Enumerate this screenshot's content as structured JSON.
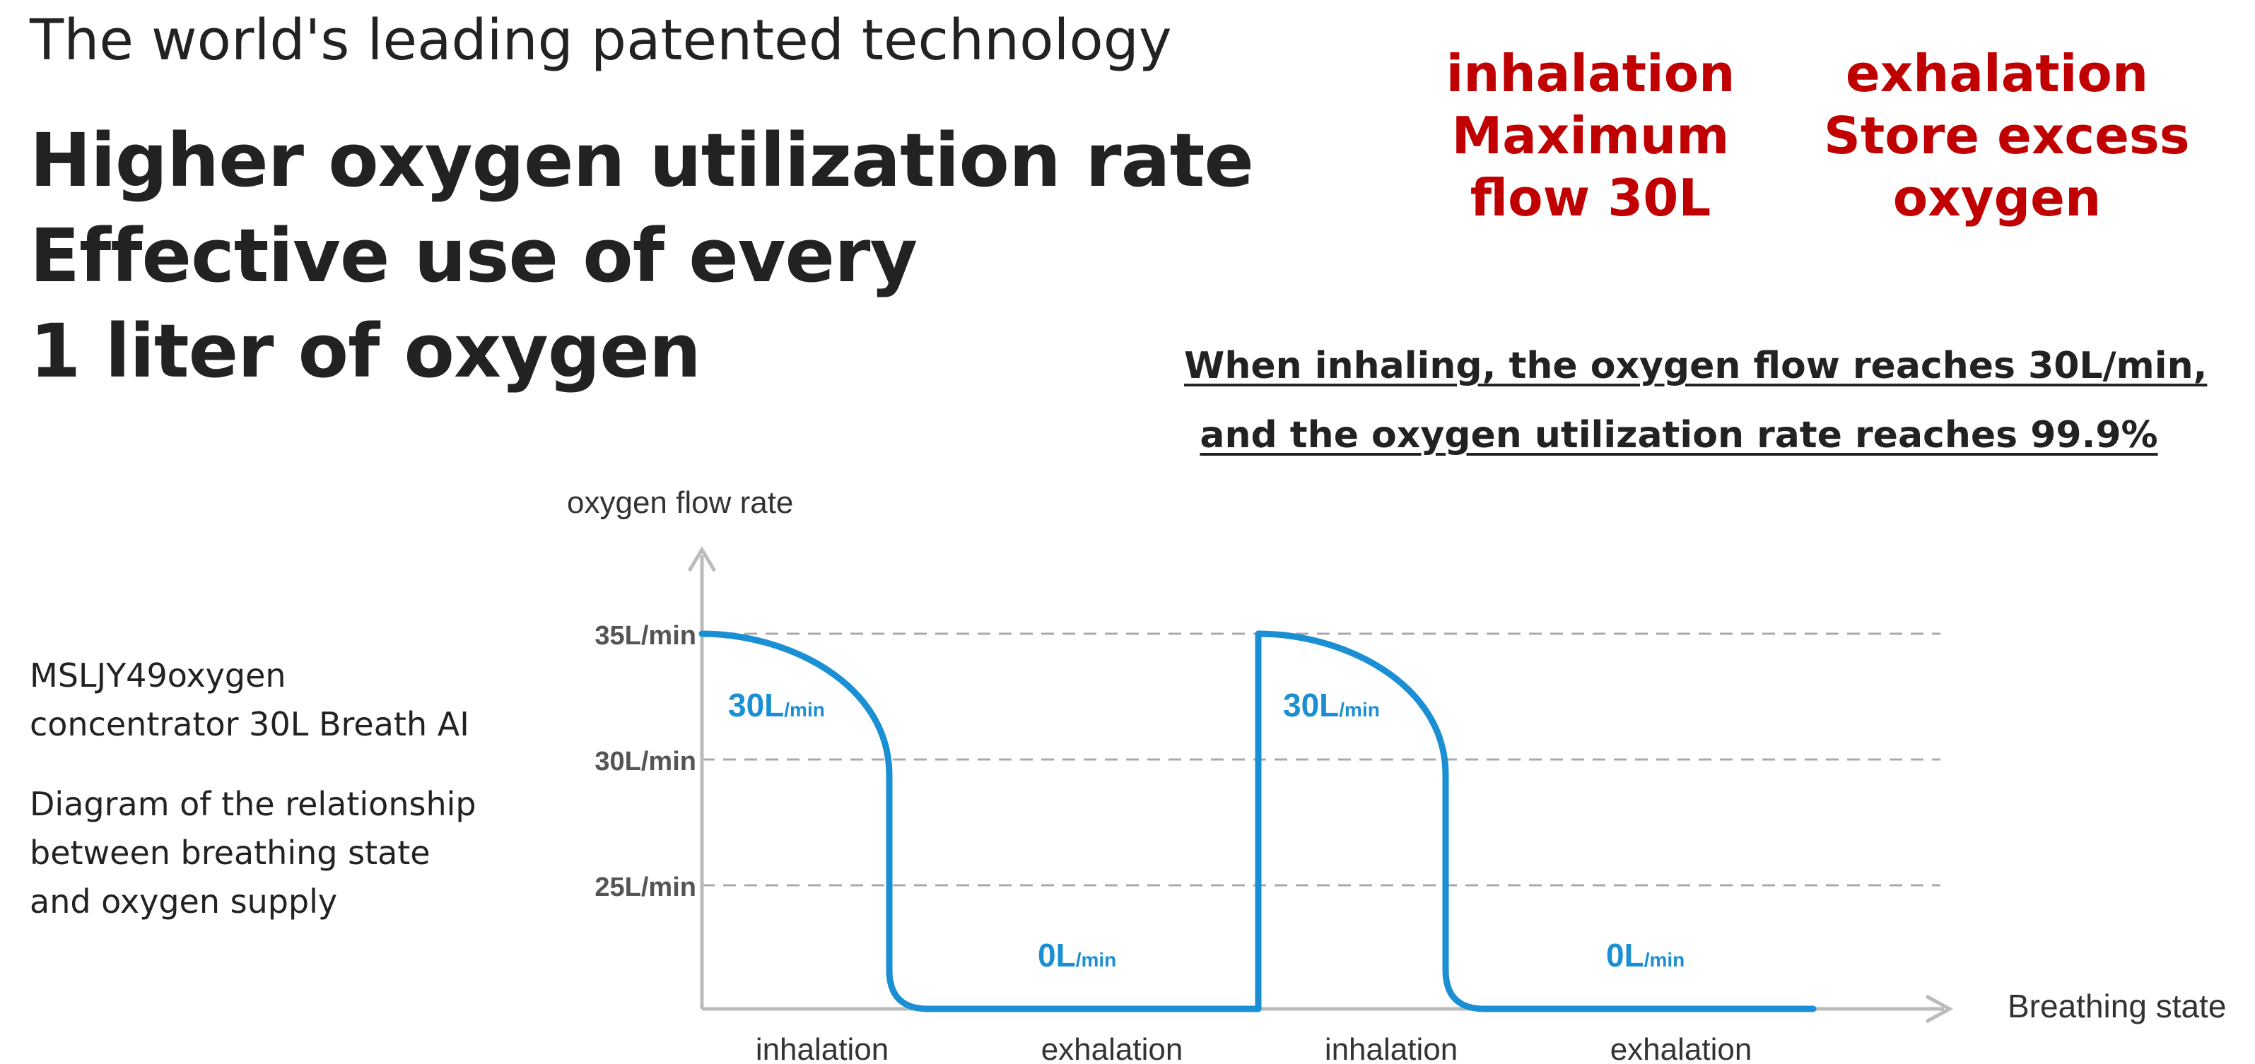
{
  "header": {
    "tagline": "The world's leading patented technology",
    "headline_lines": [
      "Higher oxygen utilization rate",
      "Effective use of every",
      "1 liter of oxygen"
    ]
  },
  "callouts": {
    "inhalation": [
      "inhalation",
      "Maximum",
      "flow 30L"
    ],
    "exhalation": [
      "exhalation",
      "Store excess",
      "oxygen"
    ]
  },
  "claim_lines": [
    "When inhaling, the oxygen flow reaches 30L/min,",
    "and the oxygen utilization rate reaches 99.9%"
  ],
  "side_panel": {
    "model_lines": [
      "MSLJY49oxygen",
      "concentrator 30L Breath AI"
    ],
    "caption_lines": [
      "Diagram of the relationship",
      "between breathing state",
      "and oxygen supply"
    ]
  },
  "colors": {
    "curve": "#1a8fd3",
    "headline_red": "#c00000",
    "axis": "#bbbbbb",
    "grid": "#aaaaaa"
  },
  "chart_data": {
    "type": "line",
    "ylabel": "oxygen flow rate",
    "xlabel": "Breathing state",
    "y_ticks": [
      "35L/min",
      "30L/min",
      "25L/min"
    ],
    "y_tick_values": [
      35,
      30,
      25
    ],
    "ylim": [
      20,
      35
    ],
    "grid": "horizontal dashed",
    "x_segments": [
      "inhalation",
      "exhalation",
      "inhalation",
      "exhalation"
    ],
    "annotations": [
      {
        "value": "30",
        "unit": "L/min",
        "phase": "inhalation"
      },
      {
        "value": "0",
        "unit": "L/min",
        "phase": "exhalation"
      },
      {
        "value": "30",
        "unit": "L/min",
        "phase": "inhalation"
      },
      {
        "value": "0",
        "unit": "L/min",
        "phase": "exhalation"
      }
    ]
  }
}
